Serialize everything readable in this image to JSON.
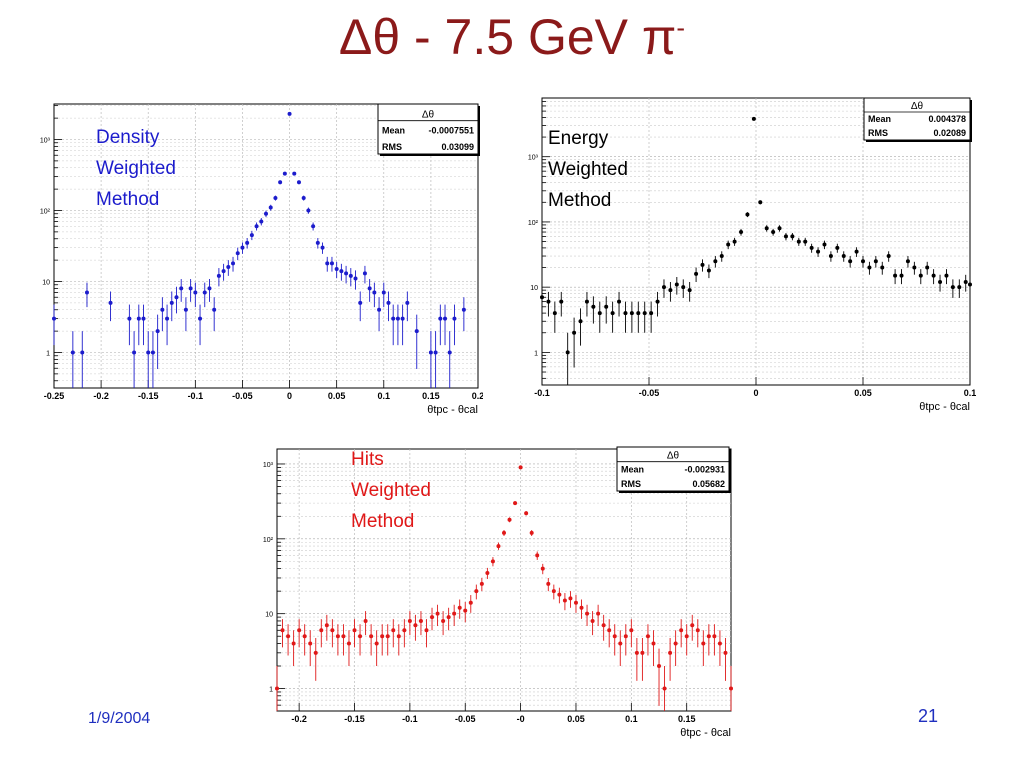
{
  "slide": {
    "title_main": "Δθ - 7.5 GeV  π",
    "title_sup": "-",
    "date": "1/9/2004",
    "page_number": "21"
  },
  "chart_data": [
    {
      "id": "density",
      "type": "scatter",
      "color": "#1c1ccc",
      "label_lines": [
        "Density",
        "Weighted",
        "Method"
      ],
      "stats": {
        "title": "Δθ",
        "rows": [
          [
            "Mean",
            "-0.0007551"
          ],
          [
            "RMS",
            "0.03099"
          ]
        ]
      },
      "xlim": [
        -0.25,
        0.2
      ],
      "ylim_log10": [
        -0.5,
        3.5
      ],
      "log_y": true,
      "grid": true,
      "xticks": [
        -0.25,
        -0.2,
        -0.15,
        -0.1,
        -0.05,
        0,
        0.05,
        0.1,
        0.15,
        0.2
      ],
      "xtick_labels": [
        "-0.25",
        "-0.2",
        "-0.15",
        "-0.1",
        "-0.05",
        "0",
        "0.05",
        "0.1",
        "0.15",
        "0.2"
      ],
      "yticks": [
        0,
        1,
        2,
        3
      ],
      "ytick_labels": [
        "1",
        "10",
        "10²",
        "10³"
      ],
      "xlabel": "θtpc - θcal",
      "x": [
        -0.25,
        -0.23,
        -0.22,
        -0.215,
        -0.19,
        -0.17,
        -0.165,
        -0.16,
        -0.155,
        -0.15,
        -0.145,
        -0.14,
        -0.135,
        -0.13,
        -0.125,
        -0.12,
        -0.115,
        -0.11,
        -0.105,
        -0.1,
        -0.095,
        -0.09,
        -0.085,
        -0.08,
        -0.075,
        -0.07,
        -0.065,
        -0.06,
        -0.055,
        -0.05,
        -0.045,
        -0.04,
        -0.035,
        -0.03,
        -0.025,
        -0.02,
        -0.015,
        -0.01,
        -0.005,
        0,
        0.005,
        0.01,
        0.015,
        0.02,
        0.025,
        0.03,
        0.035,
        0.04,
        0.045,
        0.05,
        0.055,
        0.06,
        0.065,
        0.07,
        0.075,
        0.08,
        0.085,
        0.09,
        0.095,
        0.1,
        0.105,
        0.11,
        0.115,
        0.12,
        0.125,
        0.135,
        0.15,
        0.155,
        0.16,
        0.165,
        0.17,
        0.175,
        0.185
      ],
      "y": [
        3,
        1,
        1,
        7,
        5,
        3,
        1,
        3,
        3,
        1,
        1,
        2,
        4,
        3,
        5,
        6,
        8,
        4,
        8,
        7,
        3,
        7,
        8,
        4,
        12,
        14,
        16,
        18,
        25,
        30,
        35,
        45,
        60,
        70,
        90,
        110,
        150,
        250,
        330,
        2300,
        330,
        250,
        150,
        100,
        60,
        35,
        30,
        18,
        18,
        15,
        14,
        13,
        12,
        11,
        5,
        13,
        8,
        7,
        4,
        7,
        5,
        3,
        3,
        3,
        5,
        2,
        1,
        1,
        3,
        3,
        1,
        3,
        4
      ]
    },
    {
      "id": "energy",
      "type": "scatter",
      "color": "#000000",
      "label_lines": [
        "Energy",
        "Weighted",
        "Method"
      ],
      "stats": {
        "title": "Δθ",
        "rows": [
          [
            "Mean",
            "0.004378"
          ],
          [
            "RMS",
            "0.02089"
          ]
        ]
      },
      "xlim": [
        -0.1,
        0.1
      ],
      "ylim_log10": [
        -0.5,
        3.9
      ],
      "log_y": true,
      "grid": true,
      "xticks": [
        -0.1,
        -0.05,
        0,
        0.05,
        0.1
      ],
      "xtick_labels": [
        "-0.1",
        "-0.05",
        "0",
        "0.05",
        "0.1"
      ],
      "yticks": [
        0,
        1,
        2,
        3
      ],
      "ytick_labels": [
        "1",
        "10",
        "10²",
        "10³"
      ],
      "xlabel": "θtpc - θcal",
      "x": [
        -0.1,
        -0.097,
        -0.094,
        -0.091,
        -0.088,
        -0.085,
        -0.082,
        -0.079,
        -0.076,
        -0.073,
        -0.07,
        -0.067,
        -0.064,
        -0.061,
        -0.058,
        -0.055,
        -0.052,
        -0.049,
        -0.046,
        -0.043,
        -0.04,
        -0.037,
        -0.034,
        -0.031,
        -0.028,
        -0.025,
        -0.022,
        -0.019,
        -0.016,
        -0.013,
        -0.01,
        -0.007,
        -0.004,
        -0.001,
        0.002,
        0.005,
        0.008,
        0.011,
        0.014,
        0.017,
        0.02,
        0.023,
        0.026,
        0.029,
        0.032,
        0.035,
        0.038,
        0.041,
        0.044,
        0.047,
        0.05,
        0.053,
        0.056,
        0.059,
        0.062,
        0.065,
        0.068,
        0.071,
        0.074,
        0.077,
        0.08,
        0.083,
        0.086,
        0.089,
        0.092,
        0.095,
        0.098,
        0.1
      ],
      "y": [
        7,
        6,
        4,
        6,
        1,
        2,
        3,
        6,
        5,
        4,
        5,
        4,
        6,
        4,
        4,
        4,
        4,
        4,
        6,
        10,
        9,
        11,
        10,
        9,
        16,
        22,
        18,
        25,
        30,
        45,
        50,
        70,
        130,
        3800,
        200,
        80,
        70,
        80,
        60,
        60,
        50,
        50,
        40,
        35,
        45,
        30,
        40,
        30,
        25,
        35,
        25,
        20,
        25,
        20,
        30,
        15,
        15,
        25,
        20,
        15,
        20,
        15,
        12,
        15,
        10,
        10,
        12,
        11
      ]
    },
    {
      "id": "hits",
      "type": "scatter",
      "color": "#e01818",
      "label_lines": [
        "Hits",
        "Weighted",
        "Method"
      ],
      "stats": {
        "title": "Δθ",
        "rows": [
          [
            "Mean",
            "-0.002931"
          ],
          [
            "RMS",
            "0.05682"
          ]
        ]
      },
      "xlim": [
        -0.22,
        0.19
      ],
      "ylim_log10": [
        -0.3,
        3.2
      ],
      "log_y": true,
      "grid": true,
      "xticks": [
        -0.2,
        -0.15,
        -0.1,
        -0.05,
        0,
        0.05,
        0.1,
        0.15
      ],
      "xtick_labels": [
        "-0.2",
        "-0.15",
        "-0.1",
        "-0.05",
        "-0",
        "0.05",
        "0.1",
        "0.15"
      ],
      "yticks": [
        0,
        1,
        2,
        3
      ],
      "ytick_labels": [
        "1",
        "10",
        "10²",
        "10³"
      ],
      "xlabel": "θtpc - θcal",
      "x": [
        -0.22,
        -0.215,
        -0.21,
        -0.205,
        -0.2,
        -0.195,
        -0.19,
        -0.185,
        -0.18,
        -0.175,
        -0.17,
        -0.165,
        -0.16,
        -0.155,
        -0.15,
        -0.145,
        -0.14,
        -0.135,
        -0.13,
        -0.125,
        -0.12,
        -0.115,
        -0.11,
        -0.105,
        -0.1,
        -0.095,
        -0.09,
        -0.085,
        -0.08,
        -0.075,
        -0.07,
        -0.065,
        -0.06,
        -0.055,
        -0.05,
        -0.045,
        -0.04,
        -0.035,
        -0.03,
        -0.025,
        -0.02,
        -0.015,
        -0.01,
        -0.005,
        0,
        0.005,
        0.01,
        0.015,
        0.02,
        0.025,
        0.03,
        0.035,
        0.04,
        0.045,
        0.05,
        0.055,
        0.06,
        0.065,
        0.07,
        0.075,
        0.08,
        0.085,
        0.09,
        0.095,
        0.1,
        0.105,
        0.11,
        0.115,
        0.12,
        0.125,
        0.13,
        0.135,
        0.14,
        0.145,
        0.15,
        0.155,
        0.16,
        0.165,
        0.17,
        0.175,
        0.18,
        0.185,
        0.19
      ],
      "y": [
        1,
        6,
        5,
        4,
        6,
        5,
        4,
        3,
        6,
        7,
        6,
        5,
        5,
        4,
        6,
        5,
        8,
        5,
        4,
        5,
        5,
        6,
        5,
        6,
        8,
        7,
        8,
        6,
        9,
        10,
        8,
        9,
        10,
        12,
        11,
        14,
        20,
        25,
        35,
        50,
        80,
        120,
        180,
        300,
        900,
        220,
        120,
        60,
        40,
        25,
        20,
        18,
        15,
        16,
        14,
        12,
        10,
        8,
        10,
        7,
        6,
        5,
        4,
        5,
        6,
        3,
        3,
        5,
        4,
        2,
        1,
        3,
        4,
        6,
        5,
        7,
        6,
        4,
        5,
        5,
        4,
        3,
        1
      ]
    }
  ]
}
